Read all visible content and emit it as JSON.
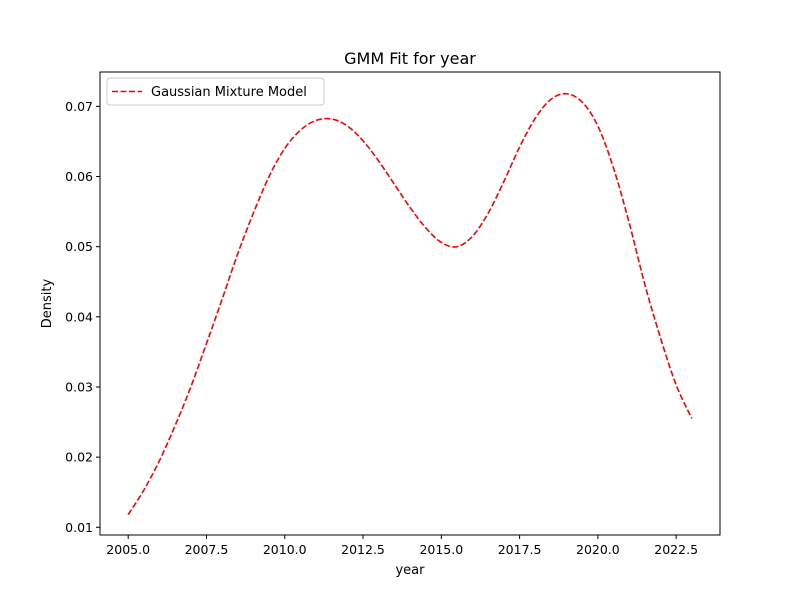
{
  "chart_data": {
    "type": "line",
    "title": "GMM Fit for year",
    "xlabel": "year",
    "ylabel": "Density",
    "xlim": [
      2004.1,
      2023.9
    ],
    "ylim": [
      0.0089,
      0.0749
    ],
    "xticks": [
      2005.0,
      2007.5,
      2010.0,
      2012.5,
      2015.0,
      2017.5,
      2020.0,
      2022.5
    ],
    "xtick_labels": [
      "2005.0",
      "2007.5",
      "2010.0",
      "2012.5",
      "2015.0",
      "2017.5",
      "2020.0",
      "2022.5"
    ],
    "yticks": [
      0.01,
      0.02,
      0.03,
      0.04,
      0.05,
      0.06,
      0.07
    ],
    "ytick_labels": [
      "0.01",
      "0.02",
      "0.03",
      "0.04",
      "0.05",
      "0.06",
      "0.07"
    ],
    "grid": false,
    "legend": {
      "position": "top-left",
      "entries": [
        "Gaussian Mixture Model"
      ]
    },
    "series": [
      {
        "name": "Gaussian Mixture Model",
        "color": "#ff0000",
        "style": "dashed",
        "x": [
          2005.0,
          2005.5,
          2006.0,
          2006.5,
          2007.0,
          2007.5,
          2008.0,
          2008.5,
          2009.0,
          2009.5,
          2010.0,
          2010.5,
          2011.0,
          2011.5,
          2012.0,
          2012.5,
          2013.0,
          2013.5,
          2014.0,
          2014.5,
          2015.0,
          2015.5,
          2016.0,
          2016.5,
          2017.0,
          2017.5,
          2018.0,
          2018.5,
          2019.0,
          2019.5,
          2020.0,
          2020.5,
          2021.0,
          2021.5,
          2022.0,
          2022.5,
          2023.0
        ],
        "y": [
          0.0118,
          0.0153,
          0.0195,
          0.0245,
          0.03,
          0.0362,
          0.0425,
          0.049,
          0.0548,
          0.06,
          0.064,
          0.0666,
          0.068,
          0.0682,
          0.0672,
          0.0651,
          0.0622,
          0.0589,
          0.0556,
          0.0527,
          0.0506,
          0.05,
          0.0515,
          0.0548,
          0.0593,
          0.0642,
          0.0683,
          0.071,
          0.0718,
          0.0706,
          0.0672,
          0.0612,
          0.0534,
          0.0446,
          0.037,
          0.0303,
          0.0255
        ]
      }
    ]
  }
}
